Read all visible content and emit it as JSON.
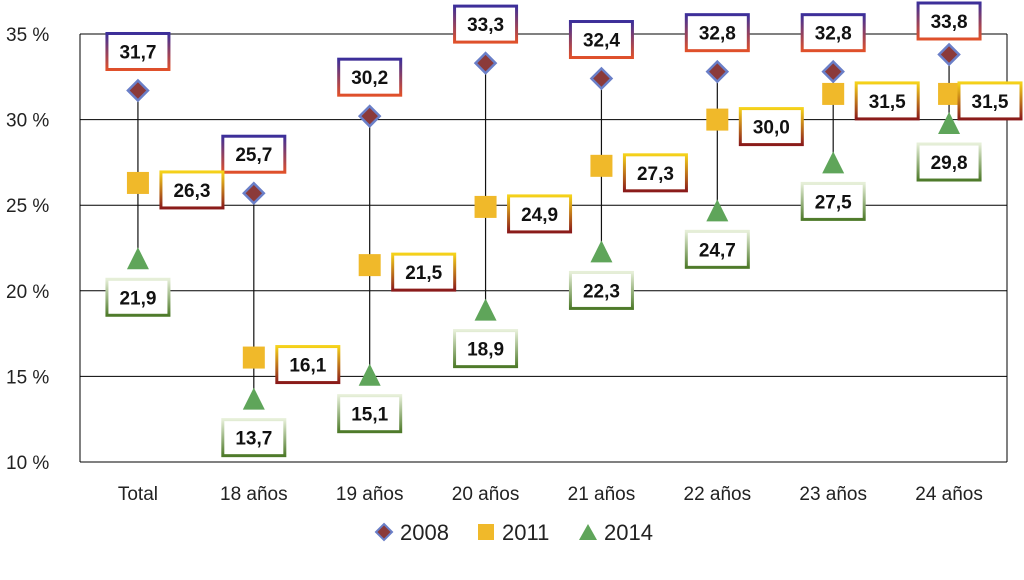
{
  "chart_data": {
    "type": "line",
    "categories": [
      "Total",
      "18 años",
      "19 años",
      "20 años",
      "21 años",
      "22 años",
      "23 años",
      "24 años"
    ],
    "series": [
      {
        "name": "2008",
        "marker": "diamond",
        "color": "#8B3A3A",
        "edge": "#6a7fc8",
        "values": [
          31.7,
          25.7,
          30.2,
          33.3,
          32.4,
          32.8,
          32.8,
          33.8
        ],
        "labels": [
          "31,7",
          "25,7",
          "30,2",
          "33,3",
          "32,4",
          "32,8",
          "32,8",
          "33,8"
        ]
      },
      {
        "name": "2011",
        "marker": "square",
        "color": "#F0B92A",
        "values": [
          26.3,
          16.1,
          21.5,
          24.9,
          27.3,
          30.0,
          31.5,
          31.5
        ],
        "labels": [
          "26,3",
          "16,1",
          "21,5",
          "24,9",
          "27,3",
          "30,0",
          "31,5",
          "31,5"
        ]
      },
      {
        "name": "2014",
        "marker": "triangle",
        "color": "#5FA55A",
        "values": [
          21.9,
          13.7,
          15.1,
          18.9,
          22.3,
          24.7,
          27.5,
          29.8
        ],
        "labels": [
          "21,9",
          "13,7",
          "15,1",
          "18,9",
          "22,3",
          "24,7",
          "27,5",
          "29,8"
        ]
      }
    ],
    "y_ticks": [
      "10 %",
      "15 %",
      "20 %",
      "25 %",
      "30 %",
      "35 %"
    ],
    "y_tick_values": [
      10,
      15,
      20,
      25,
      30,
      35
    ],
    "ylim": [
      10,
      35
    ],
    "grid": true,
    "legend_position": "bottom"
  }
}
